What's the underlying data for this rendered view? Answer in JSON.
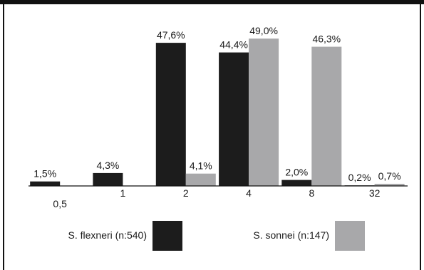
{
  "chart_data": {
    "type": "bar",
    "categories": [
      "0,5",
      "1",
      "2",
      "4",
      "8",
      "32"
    ],
    "series": [
      {
        "name": "S. flexneri (n:540)",
        "values": [
          1.5,
          4.3,
          47.6,
          44.4,
          2.0,
          0.2
        ],
        "labels": [
          "1,5%",
          "4,3%",
          "47,6%",
          "44,4%",
          "2,0%",
          "0,2%"
        ],
        "color": "#1c1c1c"
      },
      {
        "name": "S. sonnei (n:147)",
        "values": [
          null,
          null,
          4.1,
          49.0,
          46.3,
          0.7
        ],
        "labels": [
          "",
          "",
          "4,1%",
          "49,0%",
          "46,3%",
          "0,7%"
        ],
        "color": "#a8a8aa"
      }
    ],
    "ylim": [
      0,
      50
    ],
    "grid": false,
    "legend_position": "bottom"
  }
}
